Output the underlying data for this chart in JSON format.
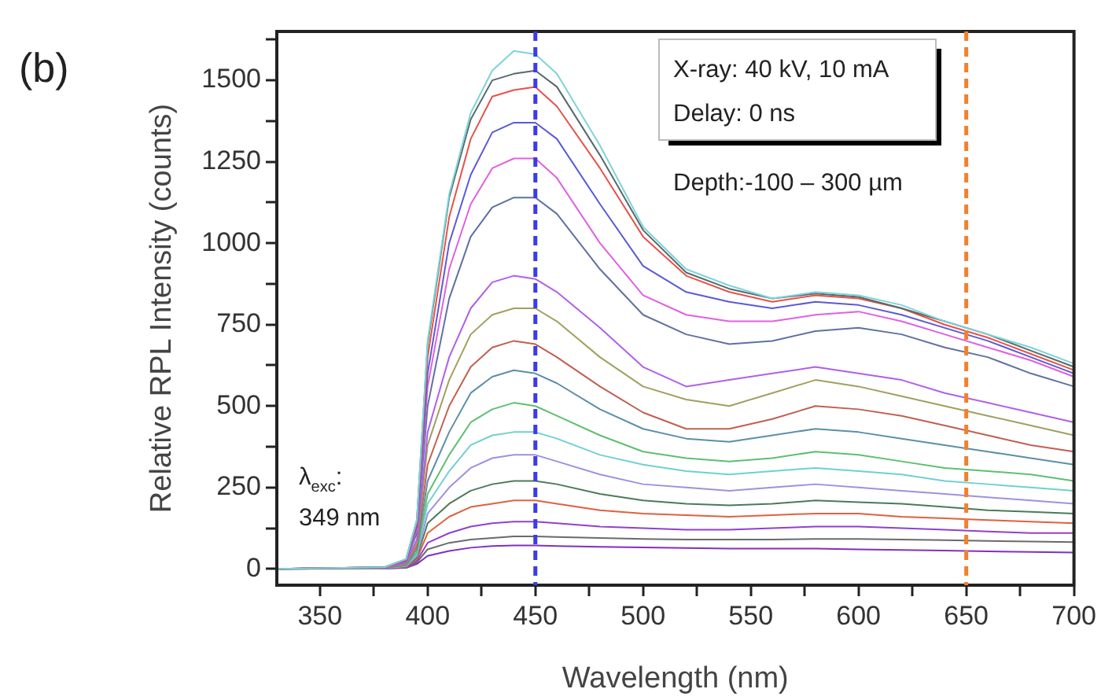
{
  "chart_data": {
    "type": "line",
    "xlabel": "Wavelength (nm)",
    "ylabel": "Relative RPL Intensity (counts)",
    "xlim": [
      330,
      700
    ],
    "xticks": [
      350,
      {
        "value": 375,
        "label": null
      },
      400,
      {
        "value": 425,
        "label": null
      },
      450,
      {
        "value": 475,
        "label": null
      },
      500,
      {
        "value": 525,
        "label": null
      },
      550,
      {
        "value": 575,
        "label": null
      },
      600,
      {
        "value": 625,
        "label": null
      },
      650,
      {
        "value": 675,
        "label": null
      },
      700
    ],
    "ylim": [
      -50,
      1650
    ],
    "yticks": [
      0,
      {
        "value": 125,
        "label": null
      },
      250,
      {
        "value": 375,
        "label": null
      },
      500,
      {
        "value": 625,
        "label": null
      },
      750,
      {
        "value": 875,
        "label": null
      },
      1000,
      {
        "value": 1125,
        "label": null
      },
      1250,
      {
        "value": 1375,
        "label": null
      },
      1500,
      {
        "value": 1625,
        "label": null
      }
    ],
    "grid": false,
    "legend": false,
    "marker": "none",
    "line_style": "solid",
    "x": [
      330,
      380,
      390,
      395,
      400,
      410,
      420,
      430,
      440,
      450,
      460,
      480,
      500,
      520,
      540,
      560,
      580,
      600,
      620,
      640,
      660,
      680,
      700
    ],
    "series": [
      {
        "color": "#7fd3d8",
        "values": [
          0,
          5,
          30,
          150,
          700,
          1150,
          1400,
          1530,
          1590,
          1580,
          1520,
          1300,
          1050,
          920,
          870,
          830,
          850,
          840,
          810,
          760,
          720,
          680,
          630
        ]
      },
      {
        "color": "#556b6b",
        "values": [
          0,
          5,
          30,
          150,
          690,
          1140,
          1380,
          1500,
          1520,
          1530,
          1480,
          1270,
          1040,
          910,
          860,
          830,
          845,
          835,
          800,
          760,
          720,
          670,
          620
        ]
      },
      {
        "color": "#e8514a",
        "values": [
          0,
          5,
          28,
          140,
          650,
          1080,
          1320,
          1450,
          1470,
          1480,
          1420,
          1230,
          1020,
          900,
          850,
          820,
          840,
          830,
          800,
          750,
          710,
          660,
          610
        ]
      },
      {
        "color": "#5a5ad8",
        "values": [
          0,
          5,
          26,
          130,
          600,
          1000,
          1210,
          1340,
          1370,
          1370,
          1320,
          1120,
          930,
          850,
          820,
          800,
          820,
          810,
          780,
          740,
          700,
          650,
          600
        ]
      },
      {
        "color": "#e060e0",
        "values": [
          0,
          5,
          24,
          120,
          560,
          920,
          1120,
          1230,
          1260,
          1260,
          1200,
          1000,
          840,
          780,
          760,
          760,
          780,
          790,
          760,
          720,
          680,
          640,
          590
        ]
      },
      {
        "color": "#6070a0",
        "values": [
          0,
          5,
          22,
          110,
          500,
          830,
          1020,
          1110,
          1140,
          1140,
          1090,
          920,
          780,
          720,
          690,
          700,
          730,
          740,
          720,
          680,
          650,
          600,
          560
        ]
      },
      {
        "color": "#b060e8",
        "values": [
          0,
          4,
          18,
          90,
          420,
          650,
          800,
          880,
          900,
          890,
          850,
          740,
          620,
          560,
          580,
          600,
          620,
          600,
          580,
          540,
          510,
          480,
          450
        ]
      },
      {
        "color": "#a0a060",
        "values": [
          0,
          4,
          16,
          80,
          380,
          580,
          720,
          780,
          800,
          800,
          760,
          650,
          560,
          520,
          500,
          540,
          580,
          560,
          530,
          500,
          470,
          440,
          410
        ]
      },
      {
        "color": "#c06050",
        "values": [
          0,
          4,
          14,
          70,
          320,
          500,
          620,
          680,
          700,
          690,
          650,
          560,
          480,
          430,
          430,
          460,
          500,
          490,
          470,
          440,
          410,
          380,
          360
        ]
      },
      {
        "color": "#5b8fa8",
        "values": [
          0,
          3,
          12,
          60,
          270,
          420,
          540,
          590,
          610,
          600,
          570,
          490,
          430,
          400,
          390,
          410,
          430,
          420,
          400,
          380,
          360,
          340,
          320
        ]
      },
      {
        "color": "#5fbf70",
        "values": [
          0,
          3,
          10,
          50,
          230,
          350,
          450,
          490,
          510,
          500,
          470,
          410,
          360,
          340,
          330,
          340,
          360,
          350,
          330,
          310,
          300,
          290,
          270
        ]
      },
      {
        "color": "#70d0d0",
        "values": [
          0,
          3,
          9,
          45,
          200,
          300,
          380,
          410,
          420,
          420,
          400,
          350,
          320,
          300,
          290,
          300,
          310,
          300,
          290,
          270,
          260,
          250,
          240
        ]
      },
      {
        "color": "#a090e0",
        "values": [
          0,
          2,
          8,
          40,
          170,
          250,
          310,
          340,
          350,
          350,
          330,
          290,
          260,
          250,
          240,
          250,
          260,
          250,
          240,
          230,
          220,
          210,
          200
        ]
      },
      {
        "color": "#4a7a5a",
        "values": [
          0,
          2,
          7,
          35,
          140,
          200,
          240,
          260,
          270,
          270,
          260,
          230,
          210,
          200,
          195,
          200,
          210,
          205,
          200,
          190,
          180,
          175,
          170
        ]
      },
      {
        "color": "#e06040",
        "values": [
          0,
          2,
          6,
          30,
          110,
          160,
          190,
          200,
          210,
          210,
          200,
          180,
          170,
          165,
          160,
          165,
          170,
          170,
          160,
          155,
          150,
          145,
          140
        ]
      },
      {
        "color": "#9040d0",
        "values": [
          0,
          2,
          5,
          25,
          80,
          110,
          130,
          140,
          145,
          145,
          140,
          130,
          125,
          120,
          120,
          125,
          130,
          130,
          125,
          120,
          115,
          110,
          110
        ]
      },
      {
        "color": "#6a6a6a",
        "values": [
          0,
          2,
          4,
          20,
          60,
          80,
          90,
          95,
          100,
          100,
          98,
          95,
          92,
          90,
          90,
          90,
          92,
          92,
          90,
          88,
          86,
          84,
          82
        ]
      },
      {
        "color": "#8030c0",
        "values": [
          0,
          1,
          3,
          15,
          40,
          55,
          65,
          70,
          72,
          72,
          70,
          68,
          66,
          64,
          62,
          62,
          62,
          60,
          58,
          56,
          54,
          52,
          50
        ]
      }
    ],
    "ref_lines": [
      {
        "axis": "x",
        "value": 450,
        "color": "#3c3ce6",
        "line_style": "dashed"
      },
      {
        "axis": "x",
        "value": 650,
        "color": "#f08030",
        "line_style": "dashed"
      }
    ],
    "annotations": [
      "(b)",
      "X-ray: 40 kV, 10 mA",
      "Delay: 0 ns",
      "Depth:-100 – 300 µm",
      "λ$_{exc}$:",
      "349 nm"
    ]
  }
}
